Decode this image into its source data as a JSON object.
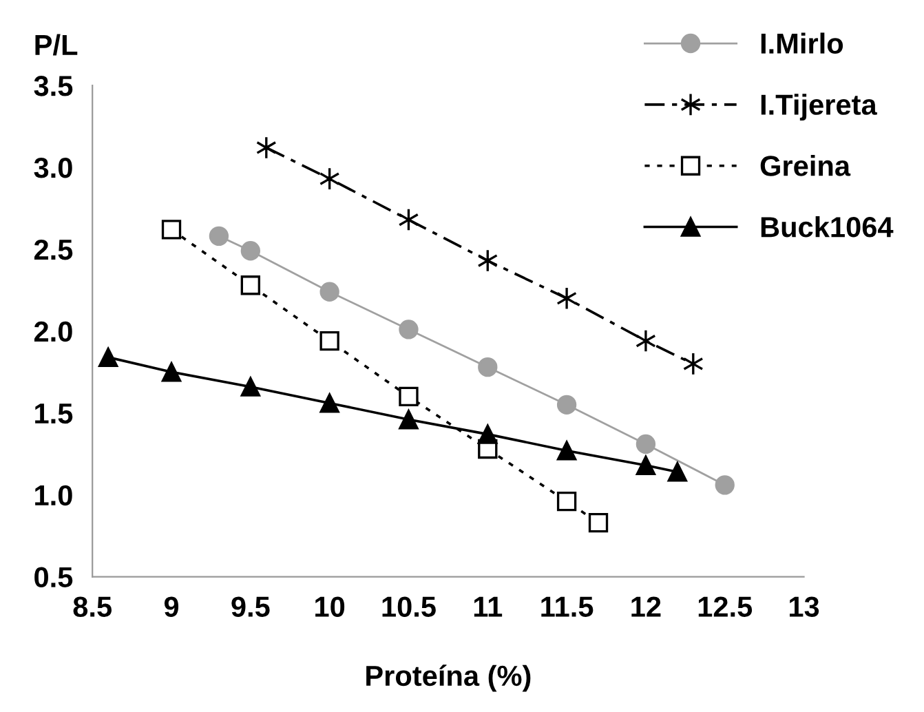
{
  "chart_data": {
    "type": "line",
    "xlabel": "Proteína (%)",
    "ylabel": "P/L",
    "xlim": [
      8.5,
      13
    ],
    "ylim": [
      0.5,
      3.5
    ],
    "xticks": [
      8.5,
      9,
      9.5,
      10,
      10.5,
      11,
      11.5,
      12,
      12.5,
      13
    ],
    "yticks": [
      {
        "value": 0.5,
        "label": "0.5"
      },
      {
        "value": 1,
        "label": "1.0"
      },
      {
        "value": 1.5,
        "label": "1.5"
      },
      {
        "value": 2,
        "label": "2.0"
      },
      {
        "value": 2.5,
        "label": "2.5"
      },
      {
        "value": 3,
        "label": "3.0"
      },
      {
        "value": 3.5,
        "label": "3.5"
      }
    ],
    "grid": false,
    "legend": "right",
    "series": [
      {
        "name": "I.Mirlo",
        "color": "#a0a0a0",
        "marker": "circle",
        "line_style": "solid",
        "x": [
          9.3,
          9.5,
          10,
          10.5,
          11,
          11.5,
          12,
          12.5
        ],
        "values": [
          2.58,
          2.49,
          2.24,
          2.01,
          1.78,
          1.55,
          1.31,
          1.06
        ]
      },
      {
        "name": "I.Tijereta",
        "color": "#000000",
        "marker": "cross",
        "line_style": "dashed",
        "x": [
          9.6,
          10,
          10.5,
          11,
          11.5,
          12,
          12.3
        ],
        "values": [
          3.12,
          2.93,
          2.68,
          2.43,
          2.2,
          1.94,
          1.8
        ]
      },
      {
        "name": "Greina",
        "color": "#000000",
        "marker": "square",
        "line_style": "dotted",
        "x": [
          9,
          9.5,
          10,
          10.5,
          11,
          11.5,
          11.7
        ],
        "values": [
          2.62,
          2.28,
          1.94,
          1.6,
          1.28,
          0.96,
          0.83
        ]
      },
      {
        "name": "Buck1064",
        "color": "#000000",
        "marker": "triangle",
        "line_style": "solid",
        "x": [
          8.6,
          9,
          9.5,
          10,
          10.5,
          11,
          11.5,
          12,
          12.2
        ],
        "values": [
          1.84,
          1.75,
          1.66,
          1.56,
          1.46,
          1.37,
          1.27,
          1.18,
          1.14
        ]
      }
    ]
  }
}
